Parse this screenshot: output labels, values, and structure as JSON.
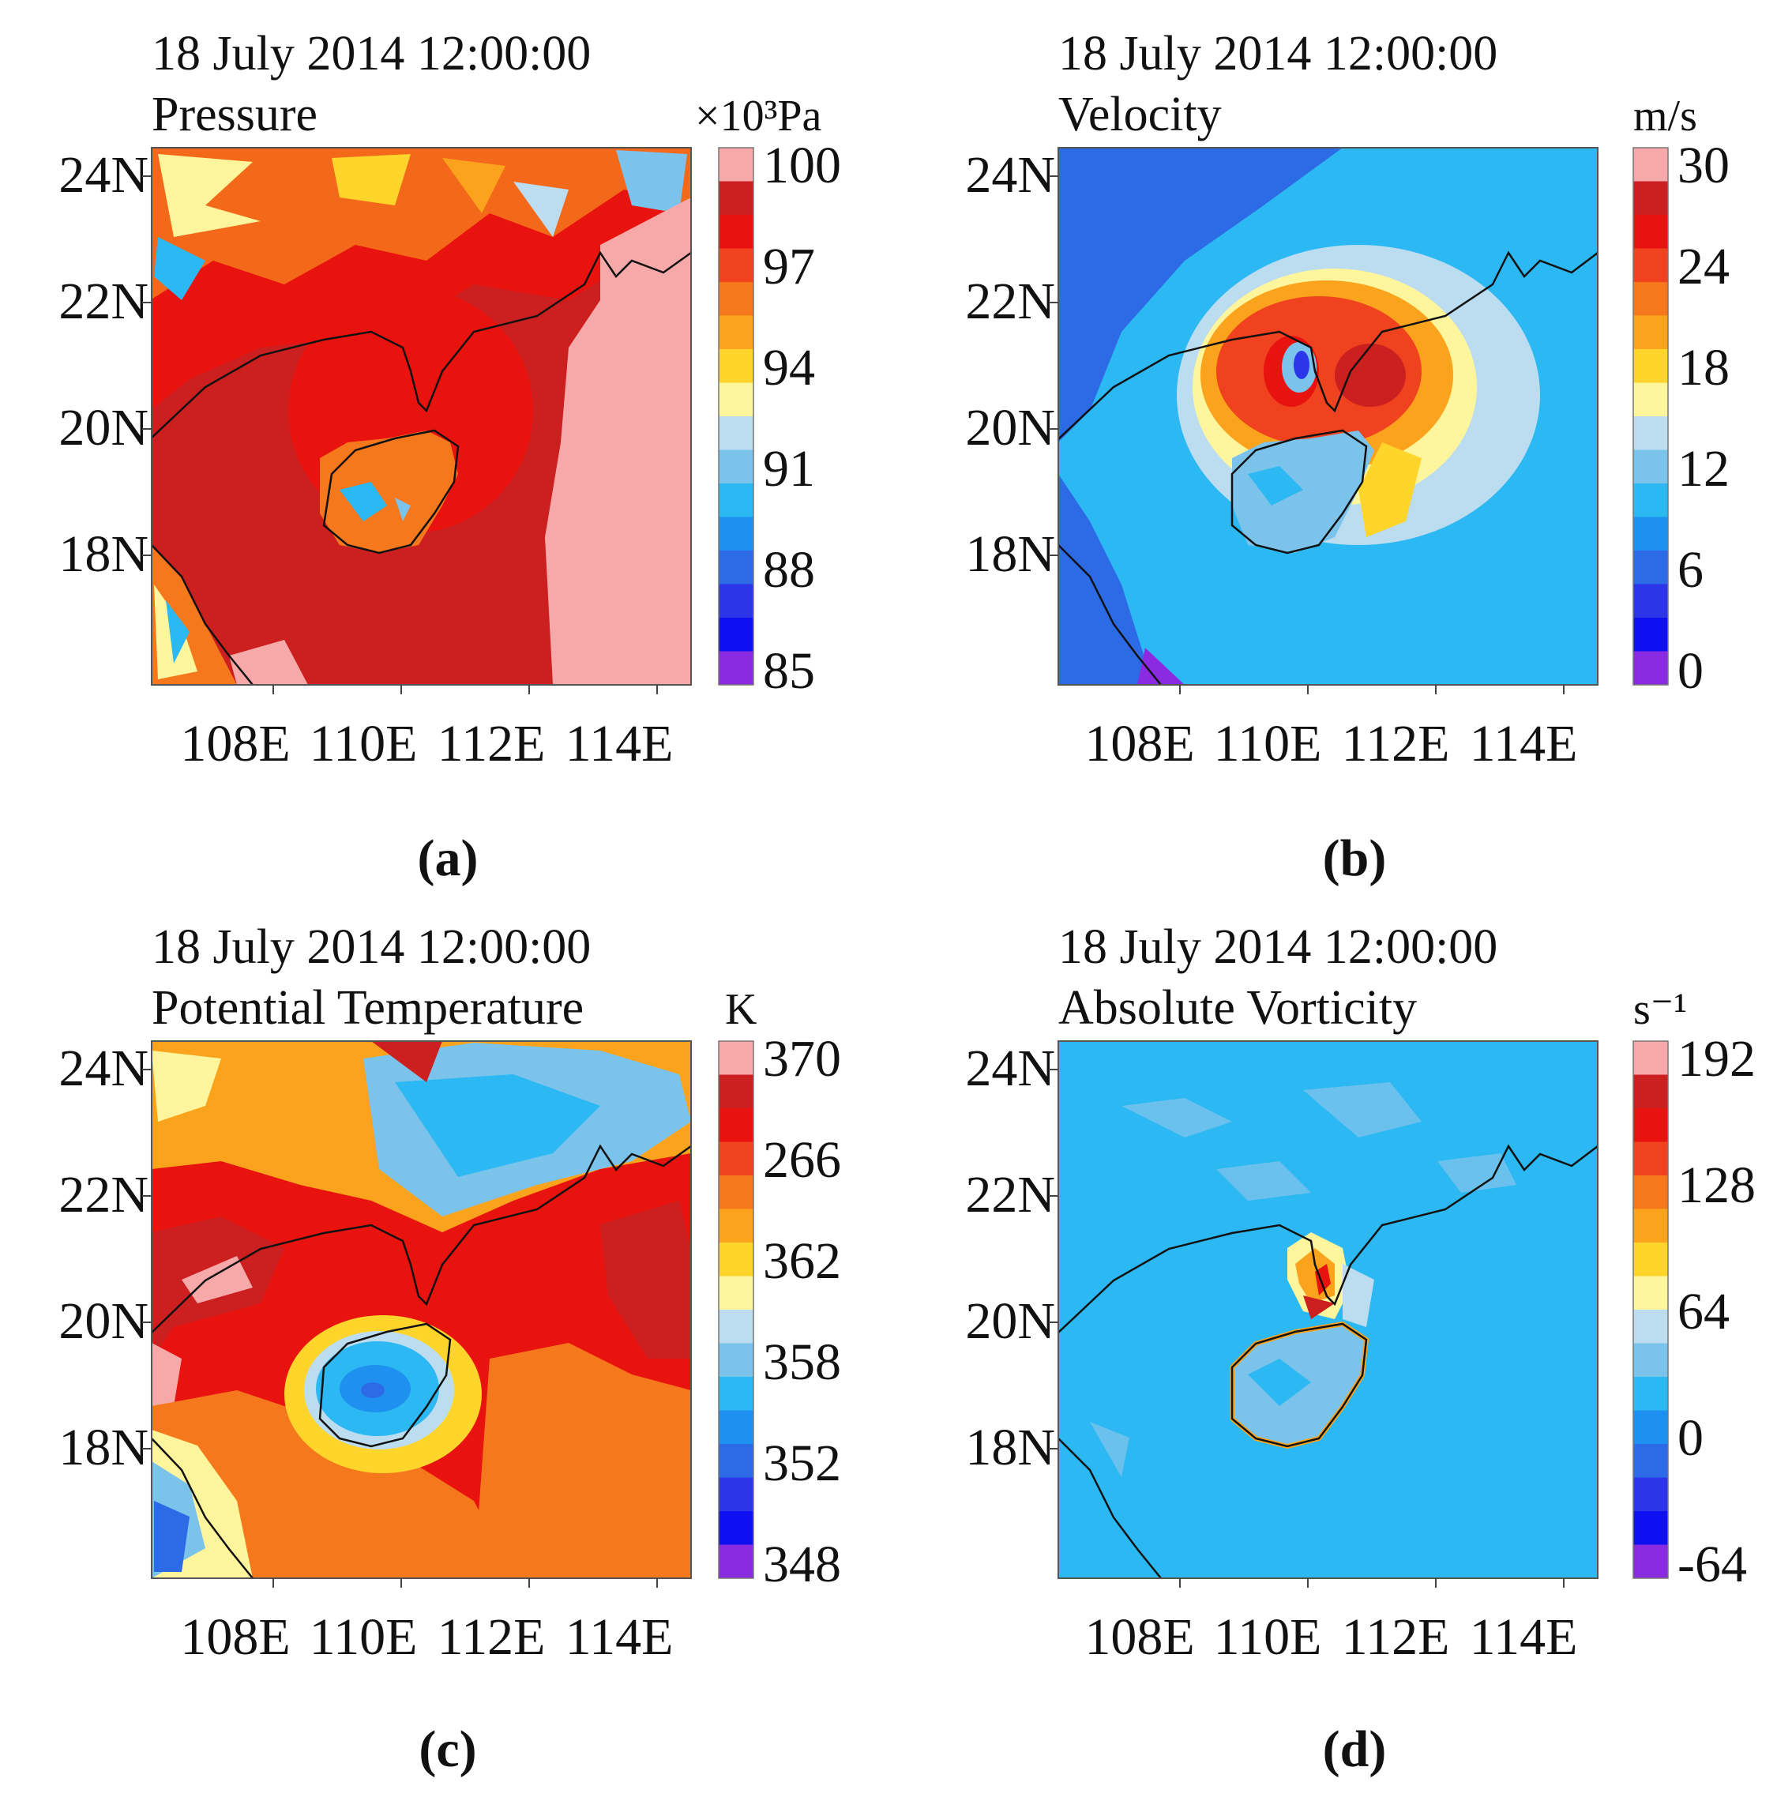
{
  "panels": [
    {
      "id": "a",
      "timestamp": "18 July 2014 12:00:00",
      "variable": "Pressure",
      "unit": "×10³Pa",
      "colorbar_labels": [
        "100",
        "97",
        "94",
        "91",
        "88",
        "85"
      ],
      "colorbar_colors": [
        "#f7a9a9",
        "#cc1f1f",
        "#e8120f",
        "#f0421e",
        "#f6781c",
        "#fba31c",
        "#ffd52c",
        "#fff59d",
        "#bcdcf0",
        "#7cc3ec",
        "#2cb8f2",
        "#1e90ef",
        "#2c6ae6",
        "#2a36e8",
        "#0f10f2",
        "#8a2be2"
      ],
      "panel_label": "(a)"
    },
    {
      "id": "b",
      "timestamp": "18 July 2014 12:00:00",
      "variable": "Velocity",
      "unit": "m/s",
      "colorbar_labels": [
        "30",
        "24",
        "18",
        "12",
        "6",
        "0"
      ],
      "colorbar_colors": [
        "#f7a9a9",
        "#cc1f1f",
        "#e8120f",
        "#f0421e",
        "#f6781c",
        "#fba31c",
        "#ffd52c",
        "#fff59d",
        "#bcdcf0",
        "#7cc3ec",
        "#2cb8f2",
        "#1e90ef",
        "#2c6ae6",
        "#2a36e8",
        "#0f10f2",
        "#8a2be2"
      ],
      "panel_label": "(b)"
    },
    {
      "id": "c",
      "timestamp": "18 July 2014 12:00:00",
      "variable": "Potential Temperature",
      "unit": "K",
      "colorbar_labels": [
        "370",
        "266",
        "362",
        "358",
        "352",
        "348"
      ],
      "colorbar_colors": [
        "#f7a9a9",
        "#cc1f1f",
        "#e8120f",
        "#f0421e",
        "#f6781c",
        "#fba31c",
        "#ffd52c",
        "#fff59d",
        "#bcdcf0",
        "#7cc3ec",
        "#2cb8f2",
        "#1e90ef",
        "#2c6ae6",
        "#2a36e8",
        "#0f10f2",
        "#8a2be2"
      ],
      "panel_label": "(c)"
    },
    {
      "id": "d",
      "timestamp": "18 July 2014 12:00:00",
      "variable": "Absolute Vorticity",
      "unit": "s⁻¹",
      "colorbar_labels": [
        "192",
        "128",
        "64",
        "0",
        "-64"
      ],
      "colorbar_colors": [
        "#f7a9a9",
        "#cc1f1f",
        "#e8120f",
        "#f0421e",
        "#f6781c",
        "#fba31c",
        "#ffd52c",
        "#fff59d",
        "#bcdcf0",
        "#7cc3ec",
        "#2cb8f2",
        "#1e90ef",
        "#2c6ae6",
        "#2a36e8",
        "#0f10f2",
        "#8a2be2"
      ],
      "panel_label": "(d)"
    }
  ],
  "lat_ticks": [
    "24N",
    "22N",
    "20N",
    "18N"
  ],
  "lon_ticks": [
    "108E",
    "110E",
    "112E",
    "114E"
  ]
}
